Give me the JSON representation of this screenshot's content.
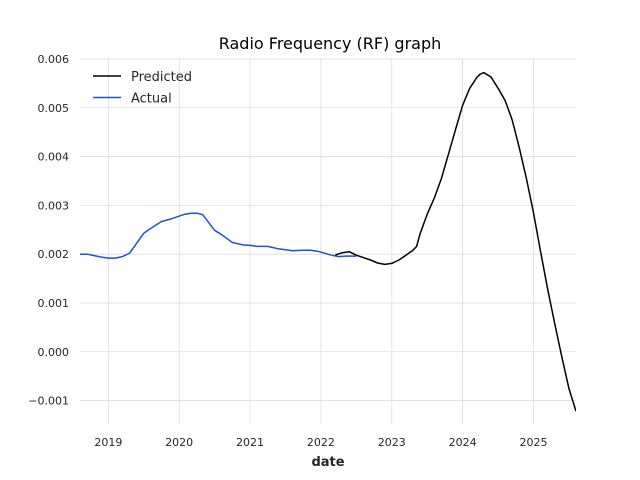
{
  "chart_data": {
    "type": "line",
    "title": "Radio Frequency (RF) graph",
    "xlabel": "date",
    "ylabel": "",
    "xlim": [
      2018.6,
      2025.6
    ],
    "ylim": [
      -0.00148,
      0.00602
    ],
    "x_ticks": [
      2019,
      2020,
      2021,
      2022,
      2023,
      2024,
      2025
    ],
    "x_tick_labels": [
      "2019",
      "2020",
      "2021",
      "2022",
      "2023",
      "2024",
      "2025"
    ],
    "y_ticks": [
      -0.001,
      0.0,
      0.001,
      0.002,
      0.003,
      0.004,
      0.005,
      0.006
    ],
    "y_tick_labels": [
      "−0.001",
      "0.000",
      "0.001",
      "0.002",
      "0.003",
      "0.004",
      "0.005",
      "0.006"
    ],
    "grid": true,
    "legend_position": "top-left",
    "series": [
      {
        "name": "Predicted",
        "color": "#000000",
        "x": [
          2022.2,
          2022.3,
          2022.4,
          2022.5,
          2022.6,
          2022.7,
          2022.8,
          2022.9,
          2023.0,
          2023.1,
          2023.2,
          2023.3,
          2023.35,
          2023.4,
          2023.5,
          2023.6,
          2023.7,
          2023.8,
          2023.9,
          2024.0,
          2024.1,
          2024.2,
          2024.25,
          2024.3,
          2024.4,
          2024.5,
          2024.6,
          2024.7,
          2024.8,
          2024.9,
          2025.0,
          2025.1,
          2025.2,
          2025.3,
          2025.4,
          2025.5,
          2025.6
        ],
        "values": [
          0.00198,
          0.00203,
          0.00205,
          0.00198,
          0.00193,
          0.00188,
          0.00182,
          0.00179,
          0.00181,
          0.00188,
          0.00198,
          0.00208,
          0.00216,
          0.00242,
          0.00282,
          0.00315,
          0.00355,
          0.00405,
          0.00455,
          0.00505,
          0.0054,
          0.00562,
          0.00569,
          0.00572,
          0.00563,
          0.0054,
          0.00515,
          0.00475,
          0.00418,
          0.00355,
          0.00285,
          0.00205,
          0.00128,
          0.00058,
          -0.0001,
          -0.00075,
          -0.00122
        ]
      },
      {
        "name": "Actual",
        "color": "#1f4fe0",
        "x": [
          2018.6,
          2018.7,
          2018.8,
          2018.9,
          2019.0,
          2019.1,
          2019.2,
          2019.3,
          2019.5,
          2019.6,
          2019.75,
          2019.9,
          2020.0,
          2020.08,
          2020.17,
          2020.25,
          2020.33,
          2020.5,
          2020.6,
          2020.75,
          2020.9,
          2021.0,
          2021.1,
          2021.25,
          2021.4,
          2021.6,
          2021.75,
          2021.85,
          2021.95,
          2022.05,
          2022.15,
          2022.25,
          2022.35,
          2022.5
        ],
        "values": [
          0.002,
          0.002,
          0.00197,
          0.00194,
          0.00192,
          0.00192,
          0.00195,
          0.00202,
          0.00243,
          0.00253,
          0.00267,
          0.00273,
          0.00278,
          0.00282,
          0.00284,
          0.00284,
          0.00281,
          0.00249,
          0.0024,
          0.00224,
          0.00219,
          0.00218,
          0.00216,
          0.00216,
          0.00211,
          0.00207,
          0.00208,
          0.00208,
          0.00206,
          0.00202,
          0.00198,
          0.00195,
          0.00196,
          0.00196
        ]
      }
    ]
  }
}
